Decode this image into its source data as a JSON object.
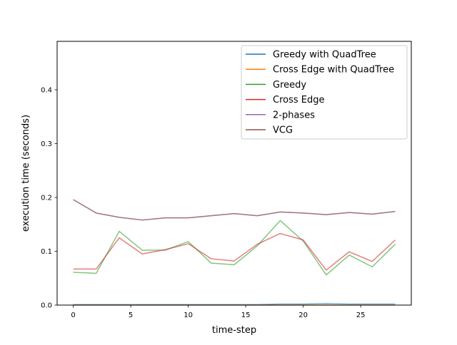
{
  "chart_data": {
    "type": "line",
    "title": "",
    "xlabel": "time-step",
    "ylabel": "execution time (seconds)",
    "xlim": [
      -1.4,
      29.4
    ],
    "ylim": [
      0,
      0.49
    ],
    "xticks": [
      0,
      5,
      10,
      15,
      20,
      25
    ],
    "xtick_labels": [
      "0",
      "5",
      "10",
      "15",
      "20",
      "25"
    ],
    "yticks": [
      0.0,
      0.1,
      0.2,
      0.3,
      0.4
    ],
    "ytick_labels": [
      "0.0",
      "0.1",
      "0.2",
      "0.3",
      "0.4"
    ],
    "grid": false,
    "legend_position": "top-right",
    "x": [
      0,
      2,
      4,
      6,
      8,
      10,
      12,
      14,
      16,
      18,
      20,
      22,
      24,
      26,
      28
    ],
    "series": [
      {
        "name": "Greedy with QuadTree",
        "color": "#1f77b4",
        "opacity": 0.6,
        "values": [
          0.001,
          0.001,
          0.001,
          0.001,
          0.001,
          0.001,
          0.001,
          0.001,
          0.001,
          0.002,
          0.002,
          0.003,
          0.002,
          0.002,
          0.002
        ]
      },
      {
        "name": "Cross Edge with QuadTree",
        "color": "#ff7f0e",
        "opacity": 0.6,
        "values": [
          0.0,
          0.0,
          0.0,
          0.0,
          0.0,
          0.0,
          0.0,
          0.0,
          0.0,
          0.0,
          0.0,
          0.0,
          0.0,
          0.0,
          0.0
        ]
      },
      {
        "name": "Greedy",
        "color": "#2ca02c",
        "opacity": 0.6,
        "values": [
          0.061,
          0.059,
          0.137,
          0.102,
          0.102,
          0.118,
          0.078,
          0.075,
          0.11,
          0.157,
          0.119,
          0.056,
          0.093,
          0.071,
          0.113
        ]
      },
      {
        "name": "Cross Edge",
        "color": "#d62728",
        "opacity": 0.6,
        "values": [
          0.067,
          0.067,
          0.125,
          0.095,
          0.103,
          0.114,
          0.086,
          0.082,
          0.113,
          0.133,
          0.121,
          0.065,
          0.099,
          0.081,
          0.121
        ]
      },
      {
        "name": "2-phases",
        "color": "#9467bd",
        "opacity": 0.6,
        "values": [
          0.196,
          0.171,
          0.163,
          0.158,
          0.162,
          0.162,
          0.166,
          0.17,
          0.166,
          0.173,
          0.171,
          0.168,
          0.172,
          0.169,
          0.174
        ]
      },
      {
        "name": "VCG",
        "color": "#8c564b",
        "opacity": 0.6,
        "values": [
          0.196,
          0.171,
          0.163,
          0.158,
          0.162,
          0.162,
          0.166,
          0.17,
          0.166,
          0.173,
          0.171,
          0.168,
          0.172,
          0.169,
          0.174
        ]
      }
    ]
  }
}
